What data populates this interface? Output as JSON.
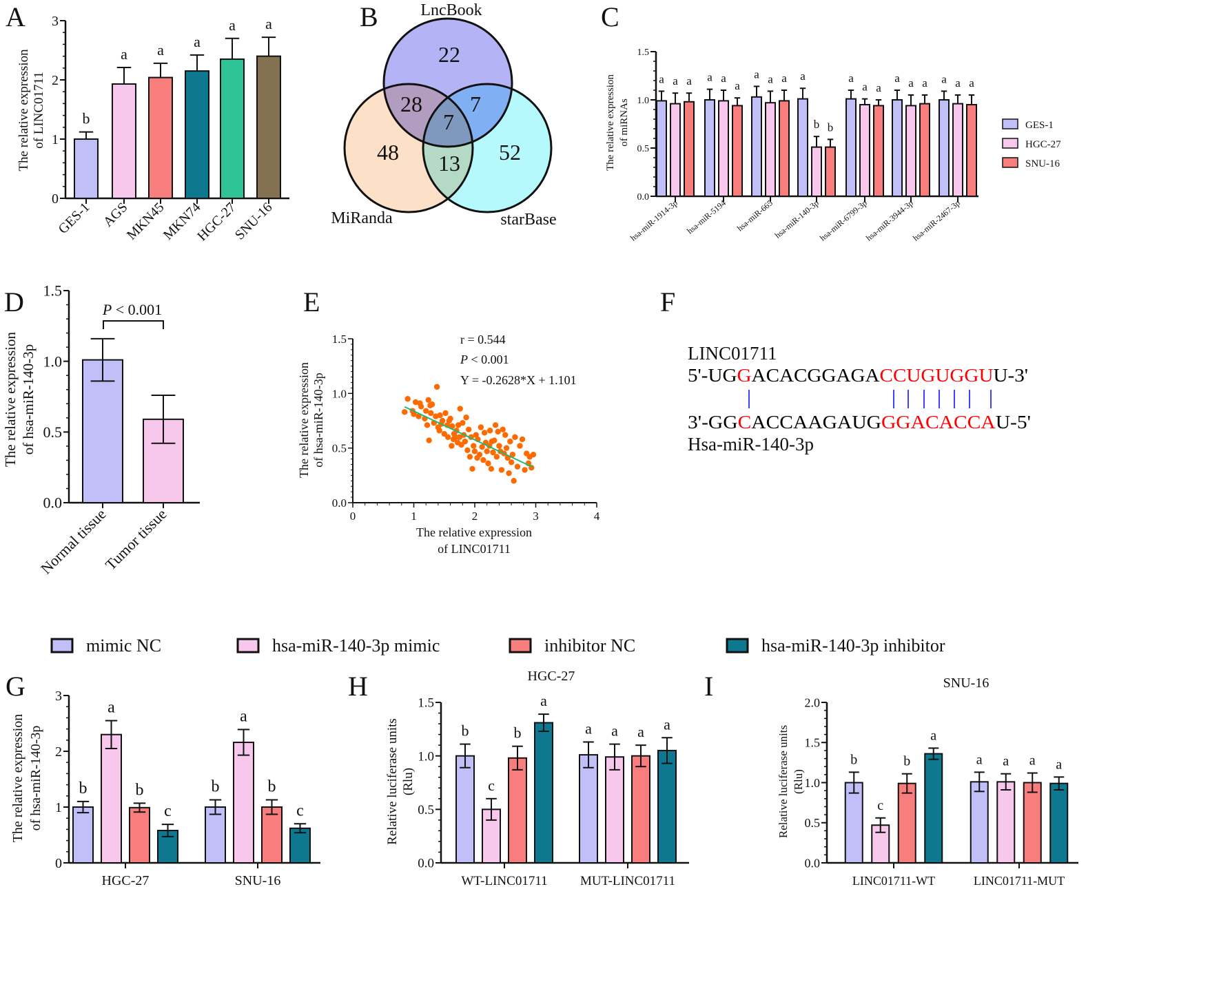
{
  "panel_labels": [
    "A",
    "B",
    "C",
    "D",
    "E",
    "F",
    "G",
    "H",
    "I"
  ],
  "chart_data": [
    {
      "type": "bar",
      "ylabel": [
        "The relative expression",
        "of LINC01711"
      ],
      "ylim": [
        0,
        3
      ],
      "yticks": [
        "0",
        "1",
        "2",
        "3"
      ],
      "categories": [
        "GES-1",
        "AGS",
        "MKN45",
        "MKN74",
        "HGC-27",
        "SNU-16"
      ],
      "colors": [
        "#c0bff8",
        "#f8c8ec",
        "#f87e7e",
        "#0e7891",
        "#2fc495",
        "#847152"
      ],
      "series": [
        {
          "values": [
            1.0,
            1.93,
            2.04,
            2.15,
            2.35,
            2.4
          ],
          "errors": [
            0.12,
            0.28,
            0.24,
            0.27,
            0.35,
            0.32
          ],
          "letters": [
            "b",
            "a",
            "a",
            "a",
            "a",
            "a"
          ]
        }
      ]
    },
    {
      "type": "venn",
      "sets": [
        {
          "name": "LncBook",
          "color": "#b4b3f5"
        },
        {
          "name": "MiRanda",
          "color": "#fde0c8"
        },
        {
          "name": "starBase",
          "color": "#b6f9fd"
        }
      ],
      "regions": {
        "LncBook_only": "22",
        "LncBook_MiRanda": "28",
        "LncBook_starBase": "7",
        "all": "7",
        "MiRanda_only": "48",
        "MiRanda_starBase": "13",
        "starBase_only": "52"
      }
    },
    {
      "type": "bar",
      "ylabel": [
        "The relative expression",
        "of miRNAs"
      ],
      "ylim": [
        0,
        1.5
      ],
      "yticks": [
        "0.0",
        "0.5",
        "1.0",
        "1.5"
      ],
      "categories": [
        "hsa-miR-1914-3p",
        "hsa-miR-5194",
        "hsa-miR-665",
        "hsa-miR-140-3p",
        "hsa-miR-6799-3p",
        "hsa-miR-3944-3p",
        "hsa-miR-2467-3p"
      ],
      "legend": "right",
      "series": [
        {
          "name": "GES-1",
          "color": "#c0bff8",
          "values": [
            0.99,
            1.0,
            1.03,
            1.01,
            1.01,
            1.0,
            1.0
          ],
          "errors": [
            0.1,
            0.11,
            0.11,
            0.11,
            0.09,
            0.1,
            0.09
          ],
          "letters": [
            "a",
            "a",
            "a",
            "a",
            "a",
            "a",
            "a"
          ]
        },
        {
          "name": "HGC-27",
          "color": "#f8c8ec",
          "values": [
            0.96,
            0.99,
            0.97,
            0.51,
            0.95,
            0.94,
            0.96
          ],
          "errors": [
            0.11,
            0.11,
            0.12,
            0.11,
            0.06,
            0.11,
            0.09
          ],
          "letters": [
            "a",
            "a",
            "a",
            "b",
            "a",
            "a",
            "a"
          ]
        },
        {
          "name": "SNU-16",
          "color": "#f87e7e",
          "values": [
            0.98,
            0.94,
            0.99,
            0.51,
            0.94,
            0.96,
            0.95
          ],
          "errors": [
            0.09,
            0.08,
            0.11,
            0.08,
            0.06,
            0.09,
            0.1
          ],
          "letters": [
            "a",
            "a",
            "a",
            "b",
            "a",
            "a",
            "a"
          ]
        }
      ]
    },
    {
      "type": "bar",
      "ylabel": [
        "The relative expression",
        "of hsa-miR-140-3p"
      ],
      "ylim": [
        0,
        1.5
      ],
      "yticks": [
        "0.0",
        "0.5",
        "1.0",
        "1.5"
      ],
      "categories": [
        "Normal tissue",
        "Tumor tissue"
      ],
      "colors": [
        "#c0bff8",
        "#f8c8ec"
      ],
      "series": [
        {
          "values": [
            1.01,
            0.59
          ],
          "errors": [
            0.15,
            0.17
          ]
        }
      ],
      "annotation": {
        "p_symbol": "P",
        "p_rest": " < 0.001"
      }
    },
    {
      "type": "scatter",
      "xlabel": [
        "The relative expression",
        "of LINC01711"
      ],
      "ylabel": [
        "The relative expression",
        "of  hsa-miR-140-3p"
      ],
      "xlim": [
        0,
        4
      ],
      "ylim": [
        0,
        1.5
      ],
      "xticks": [
        "0",
        "1",
        "2",
        "3",
        "4"
      ],
      "yticks": [
        "0.0",
        "0.5",
        "1.0",
        "1.5"
      ],
      "point_color": "#ff6a00",
      "line_color": "#1fb87a",
      "fit": {
        "slope": -0.2628,
        "intercept": 1.101,
        "x_range": [
          0.85,
          2.95
        ]
      },
      "annotations": {
        "r": "r = 0.544",
        "p_symbol": "P",
        "p_rest": " < 0.001",
        "equation": "Y = -0.2628*X + 1.101"
      },
      "points": [
        [
          0.85,
          0.83
        ],
        [
          0.9,
          0.95
        ],
        [
          0.98,
          0.84
        ],
        [
          1.0,
          0.81
        ],
        [
          1.03,
          0.92
        ],
        [
          1.08,
          0.79
        ],
        [
          1.1,
          0.91
        ],
        [
          1.12,
          0.88
        ],
        [
          1.18,
          0.77
        ],
        [
          1.2,
          0.84
        ],
        [
          1.22,
          0.71
        ],
        [
          1.24,
          0.94
        ],
        [
          1.25,
          0.57
        ],
        [
          1.27,
          0.89
        ],
        [
          1.28,
          0.82
        ],
        [
          1.3,
          0.9
        ],
        [
          1.33,
          0.73
        ],
        [
          1.36,
          0.79
        ],
        [
          1.38,
          1.06
        ],
        [
          1.4,
          0.69
        ],
        [
          1.42,
          0.66
        ],
        [
          1.43,
          0.8
        ],
        [
          1.45,
          0.72
        ],
        [
          1.47,
          0.75
        ],
        [
          1.5,
          0.63
        ],
        [
          1.52,
          0.82
        ],
        [
          1.55,
          0.71
        ],
        [
          1.56,
          0.6
        ],
        [
          1.58,
          0.75
        ],
        [
          1.6,
          0.77
        ],
        [
          1.62,
          0.52
        ],
        [
          1.63,
          0.7
        ],
        [
          1.65,
          0.58
        ],
        [
          1.66,
          0.63
        ],
        [
          1.68,
          0.6
        ],
        [
          1.7,
          0.66
        ],
        [
          1.72,
          0.55
        ],
        [
          1.73,
          0.71
        ],
        [
          1.75,
          0.6
        ],
        [
          1.76,
          0.86
        ],
        [
          1.78,
          0.53
        ],
        [
          1.8,
          0.73
        ],
        [
          1.82,
          0.62
        ],
        [
          1.84,
          0.56
        ],
        [
          1.86,
          0.78
        ],
        [
          1.88,
          0.48
        ],
        [
          1.9,
          0.67
        ],
        [
          1.92,
          0.42
        ],
        [
          1.94,
          0.6
        ],
        [
          1.96,
          0.31
        ],
        [
          1.98,
          0.52
        ],
        [
          2.0,
          0.47
        ],
        [
          2.02,
          0.62
        ],
        [
          2.04,
          0.41
        ],
        [
          2.05,
          0.58
        ],
        [
          2.08,
          0.44
        ],
        [
          2.1,
          0.69
        ],
        [
          2.12,
          0.51
        ],
        [
          2.14,
          0.39
        ],
        [
          2.16,
          0.64
        ],
        [
          2.18,
          0.55
        ],
        [
          2.2,
          0.47
        ],
        [
          2.22,
          0.36
        ],
        [
          2.24,
          0.52
        ],
        [
          2.25,
          0.66
        ],
        [
          2.27,
          0.31
        ],
        [
          2.28,
          0.56
        ],
        [
          2.3,
          0.46
        ],
        [
          2.32,
          0.57
        ],
        [
          2.34,
          0.71
        ],
        [
          2.36,
          0.42
        ],
        [
          2.38,
          0.65
        ],
        [
          2.4,
          0.52
        ],
        [
          2.42,
          0.47
        ],
        [
          2.44,
          0.3
        ],
        [
          2.46,
          0.67
        ],
        [
          2.48,
          0.45
        ],
        [
          2.5,
          0.62
        ],
        [
          2.52,
          0.5
        ],
        [
          2.54,
          0.41
        ],
        [
          2.56,
          0.27
        ],
        [
          2.58,
          0.56
        ],
        [
          2.6,
          0.37
        ],
        [
          2.62,
          0.44
        ],
        [
          2.64,
          0.2
        ],
        [
          2.66,
          0.6
        ],
        [
          2.7,
          0.33
        ],
        [
          2.74,
          0.52
        ],
        [
          2.78,
          0.58
        ],
        [
          2.82,
          0.3
        ],
        [
          2.85,
          0.45
        ],
        [
          2.88,
          0.36
        ],
        [
          2.9,
          0.42
        ],
        [
          2.93,
          0.32
        ],
        [
          2.96,
          0.44
        ]
      ]
    },
    {
      "type": "bar",
      "ylabel": [
        "The relative expression",
        "of hsa-miR-140-3p"
      ],
      "ylim": [
        0,
        3
      ],
      "yticks": [
        "0",
        "1",
        "2",
        "3"
      ],
      "categories": [
        "HGC-27",
        "SNU-16"
      ],
      "series": [
        {
          "name": "mimic NC",
          "color": "#c0bff8",
          "values": [
            1.0,
            1.0
          ],
          "errors": [
            0.1,
            0.13
          ],
          "letters": [
            "b",
            "b"
          ]
        },
        {
          "name": "hsa-miR-140-3p mimic",
          "color": "#f8c8ec",
          "values": [
            2.3,
            2.16
          ],
          "errors": [
            0.25,
            0.23
          ],
          "letters": [
            "a",
            "a"
          ]
        },
        {
          "name": "inhibitor NC",
          "color": "#f87e7e",
          "values": [
            0.99,
            1.0
          ],
          "errors": [
            0.08,
            0.13
          ],
          "letters": [
            "b",
            "b"
          ]
        },
        {
          "name": "hsa-miR-140-3p inhibitor",
          "color": "#0e7891",
          "values": [
            0.58,
            0.62
          ],
          "errors": [
            0.11,
            0.08
          ],
          "letters": [
            "c",
            "c"
          ]
        }
      ]
    },
    {
      "type": "bar",
      "title": "HGC-27",
      "ylabel": [
        "Relative luciferase units",
        "(Rlu)"
      ],
      "ylim": [
        0,
        1.5
      ],
      "yticks": [
        "0.0",
        "0.5",
        "1.0",
        "1.5"
      ],
      "categories": [
        "WT-LINC01711",
        "MUT-LINC01711"
      ],
      "series": [
        {
          "name": "mimic NC",
          "color": "#c0bff8",
          "values": [
            1.0,
            1.01
          ],
          "errors": [
            0.11,
            0.12
          ],
          "letters": [
            "b",
            "a"
          ]
        },
        {
          "name": "hsa-miR-140-3p mimic",
          "color": "#f8c8ec",
          "values": [
            0.5,
            0.99
          ],
          "errors": [
            0.1,
            0.12
          ],
          "letters": [
            "c",
            "a"
          ]
        },
        {
          "name": "inhibitor NC",
          "color": "#f87e7e",
          "values": [
            0.98,
            1.0
          ],
          "errors": [
            0.11,
            0.1
          ],
          "letters": [
            "b",
            "a"
          ]
        },
        {
          "name": "hsa-miR-140-3p inhibitor",
          "color": "#0e7891",
          "values": [
            1.31,
            1.05
          ],
          "errors": [
            0.08,
            0.12
          ],
          "letters": [
            "a",
            "a"
          ]
        }
      ]
    },
    {
      "type": "bar",
      "title": "SNU-16",
      "ylabel": [
        "Relative luciferase units",
        "(Rlu)"
      ],
      "ylim": [
        0,
        2.0
      ],
      "yticks": [
        "0.0",
        "0.5",
        "1.0",
        "1.5",
        "2.0"
      ],
      "categories": [
        "LINC01711-WT",
        "LINC01711-MUT"
      ],
      "series": [
        {
          "name": "mimic NC",
          "color": "#c0bff8",
          "values": [
            1.0,
            1.01
          ],
          "errors": [
            0.13,
            0.12
          ],
          "letters": [
            "b",
            "a"
          ]
        },
        {
          "name": "hsa-miR-140-3p mimic",
          "color": "#f8c8ec",
          "values": [
            0.47,
            1.01
          ],
          "errors": [
            0.09,
            0.1
          ],
          "letters": [
            "c",
            "a"
          ]
        },
        {
          "name": "inhibitor NC",
          "color": "#f87e7e",
          "values": [
            0.99,
            1.0
          ],
          "errors": [
            0.12,
            0.12
          ],
          "letters": [
            "b",
            "a"
          ]
        },
        {
          "name": "hsa-miR-140-3p inhibitor",
          "color": "#0e7891",
          "values": [
            1.36,
            0.99
          ],
          "errors": [
            0.07,
            0.08
          ],
          "letters": [
            "a",
            "a"
          ]
        }
      ]
    }
  ],
  "legend_bottom": [
    {
      "label": "mimic NC",
      "color": "#c0bff8"
    },
    {
      "label": "hsa-miR-140-3p mimic",
      "color": "#f8c8ec"
    },
    {
      "label": "inhibitor NC",
      "color": "#f87e7e"
    },
    {
      "label": "hsa-miR-140-3p inhibitor",
      "color": "#0e7891"
    }
  ],
  "sequence_panel": {
    "top_name": "LINC01711",
    "top_segments": [
      {
        "text": "5'-UG",
        "color": "#000000"
      },
      {
        "text": "G",
        "color": "#ff0000"
      },
      {
        "text": "ACACGGAGA",
        "color": "#000000"
      },
      {
        "text": "CCUGUGGU",
        "color": "#ff0000"
      },
      {
        "text": "U-3'",
        "color": "#000000"
      }
    ],
    "bottom_segments": [
      {
        "text": "3'-GG",
        "color": "#000000"
      },
      {
        "text": "C",
        "color": "#ff0000"
      },
      {
        "text": "ACCAAGAUG",
        "color": "#000000"
      },
      {
        "text": "GGACACCA",
        "color": "#ff0000"
      },
      {
        "text": "U-5'",
        "color": "#000000"
      }
    ],
    "bottom_name": "Hsa-miR-140-3p",
    "pair_color": "#0000ff"
  }
}
